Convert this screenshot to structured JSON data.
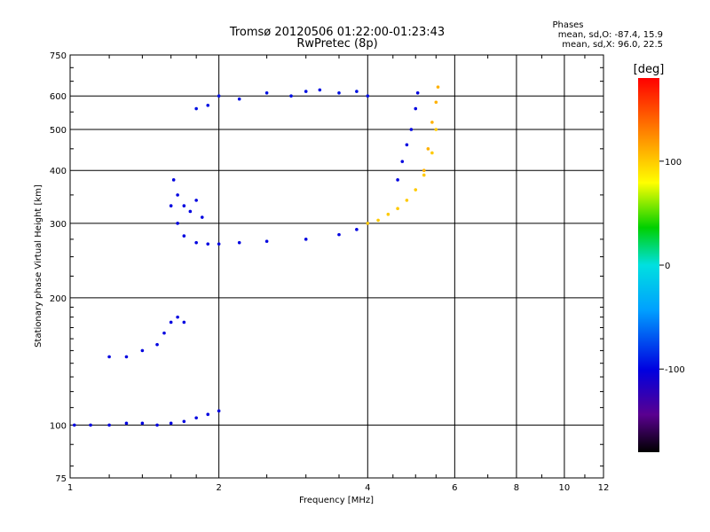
{
  "chart_data": {
    "type": "scatter",
    "title": "Tromsø 20120506 01:22:00-01:23:43",
    "subtitle": "RwPretec (8p)",
    "xlabel": "Frequency [MHz]",
    "ylabel": "Stationary phase Virtual Height [km]",
    "x_scale": "log",
    "y_scale": "log",
    "xlim": [
      1,
      12
    ],
    "ylim": [
      75,
      750
    ],
    "x_ticks": [
      1,
      2,
      4,
      6,
      8,
      10,
      12
    ],
    "y_ticks": [
      75,
      100,
      200,
      300,
      400,
      500,
      600,
      750
    ],
    "grid": true,
    "phase_stats": {
      "header": "Phases",
      "line1": "mean, sd,O: -87.4, 15.9",
      "line2": "mean, sd,X:  96.0, 22.5"
    },
    "colorbar": {
      "label": "[deg]",
      "ticks": [
        100,
        0,
        -100
      ],
      "range": [
        -180,
        180
      ]
    },
    "traces": [
      {
        "x": [
          1.02,
          1.1,
          1.2,
          1.3,
          1.4,
          1.5,
          1.6,
          1.7,
          1.8,
          1.9,
          2.0
        ],
        "y": [
          100,
          100,
          100,
          101,
          101,
          100,
          101,
          102,
          104,
          106,
          108
        ],
        "phase": -100
      },
      {
        "x": [
          1.2,
          1.3,
          1.4,
          1.5,
          1.55,
          1.6,
          1.65,
          1.7
        ],
        "y": [
          145,
          145,
          150,
          155,
          165,
          175,
          180,
          175
        ],
        "phase": -100
      },
      {
        "x": [
          1.6,
          1.65,
          1.7,
          1.8,
          1.9,
          2.0,
          2.2,
          2.5,
          3.0,
          3.5,
          3.8,
          4.0
        ],
        "y": [
          330,
          300,
          280,
          270,
          268,
          268,
          270,
          272,
          275,
          282,
          290,
          300
        ],
        "phase": -100
      },
      {
        "x": [
          1.62,
          1.65,
          1.7,
          1.75,
          1.8,
          1.85
        ],
        "y": [
          380,
          350,
          330,
          320,
          340,
          310
        ],
        "phase": -100
      },
      {
        "x": [
          4.0,
          4.2,
          4.4,
          4.6,
          4.8,
          5.0,
          5.2,
          5.4,
          5.5
        ],
        "y": [
          300,
          305,
          315,
          325,
          340,
          360,
          390,
          440,
          500
        ],
        "phase": 100
      },
      {
        "x": [
          4.6,
          4.7,
          4.8,
          4.9,
          5.0,
          5.05
        ],
        "y": [
          380,
          420,
          460,
          500,
          560,
          610
        ],
        "phase": -100
      },
      {
        "x": [
          5.2,
          5.3,
          5.4,
          5.5,
          5.55
        ],
        "y": [
          400,
          450,
          520,
          580,
          630
        ],
        "phase": 110
      },
      {
        "x": [
          1.8,
          1.9,
          2.0,
          2.2,
          2.5,
          2.8,
          3.0,
          3.2,
          3.5,
          3.8,
          4.0
        ],
        "y": [
          560,
          570,
          600,
          590,
          610,
          600,
          615,
          620,
          610,
          615,
          600
        ],
        "phase": -95
      }
    ]
  }
}
